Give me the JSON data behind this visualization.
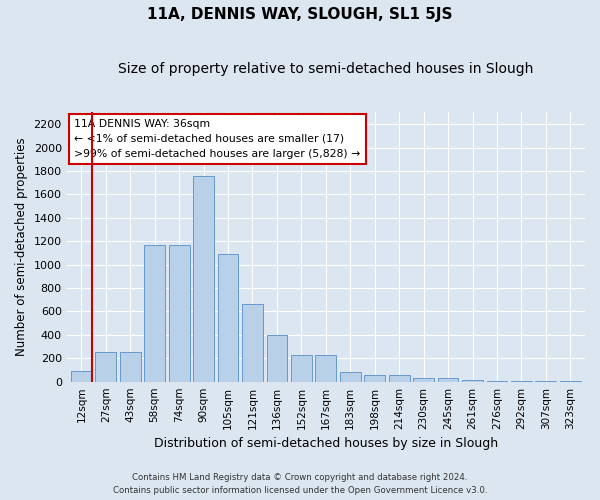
{
  "title": "11A, DENNIS WAY, SLOUGH, SL1 5JS",
  "subtitle": "Size of property relative to semi-detached houses in Slough",
  "xlabel": "Distribution of semi-detached houses by size in Slough",
  "ylabel": "Number of semi-detached properties",
  "categories": [
    "12sqm",
    "27sqm",
    "43sqm",
    "58sqm",
    "74sqm",
    "90sqm",
    "105sqm",
    "121sqm",
    "136sqm",
    "152sqm",
    "167sqm",
    "183sqm",
    "198sqm",
    "214sqm",
    "230sqm",
    "245sqm",
    "261sqm",
    "276sqm",
    "292sqm",
    "307sqm",
    "323sqm"
  ],
  "values": [
    90,
    250,
    250,
    1165,
    1165,
    1760,
    1090,
    665,
    395,
    230,
    230,
    80,
    60,
    60,
    35,
    35,
    18,
    10,
    5,
    3,
    2
  ],
  "bar_color": "#b8d0e8",
  "bar_edge_color": "#6699cc",
  "annotation_box_text": "11A DENNIS WAY: 36sqm\n← <1% of semi-detached houses are smaller (17)\n>99% of semi-detached houses are larger (5,828) →",
  "annotation_box_color": "#ffffff",
  "annotation_box_edge_color": "#cc0000",
  "vline_color": "#cc0000",
  "vline_x": 0.42,
  "ylim": [
    0,
    2300
  ],
  "yticks": [
    0,
    200,
    400,
    600,
    800,
    1000,
    1200,
    1400,
    1600,
    1800,
    2000,
    2200
  ],
  "background_color": "#dce6f1",
  "plot_bg_color": "#dce6f1",
  "grid_color": "#ffffff",
  "title_fontsize": 11,
  "subtitle_fontsize": 10,
  "footer_line1": "Contains HM Land Registry data © Crown copyright and database right 2024.",
  "footer_line2": "Contains public sector information licensed under the Open Government Licence v3.0."
}
